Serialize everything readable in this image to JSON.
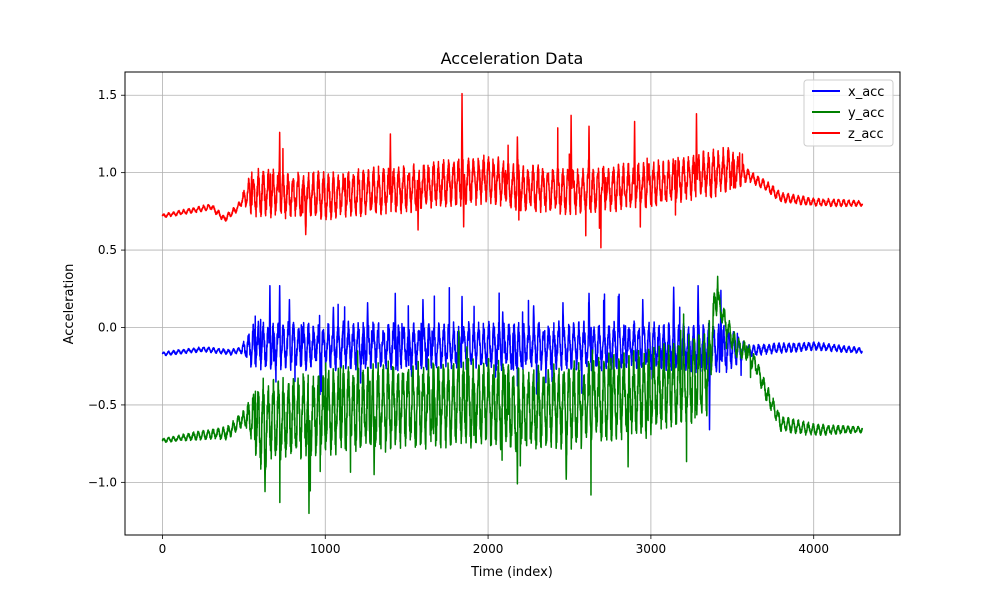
{
  "chart_data": {
    "type": "line",
    "title": "Acceleration Data",
    "xlabel": "Time (index)",
    "ylabel": "Acceleration",
    "xlim": [
      -230,
      4530
    ],
    "ylim": [
      -1.34,
      1.65
    ],
    "xticks": [
      0,
      1000,
      2000,
      3000,
      4000
    ],
    "yticks": [
      -1.0,
      -0.5,
      0.0,
      0.5,
      1.0,
      1.5
    ],
    "xtick_labels": [
      "0",
      "1000",
      "2000",
      "3000",
      "4000"
    ],
    "ytick_labels": [
      "−1.0",
      "−0.5",
      "0.0",
      "0.5",
      "1.0",
      "1.5"
    ],
    "grid": true,
    "legend_position": "upper right",
    "n_points": 4300,
    "series": [
      {
        "name": "x_acc",
        "color": "#0000ff",
        "baseline": [
          [
            0,
            -0.17
          ],
          [
            250,
            -0.14
          ],
          [
            420,
            -0.16
          ],
          [
            500,
            -0.14
          ],
          [
            580,
            -0.12
          ],
          [
            1000,
            -0.12
          ],
          [
            2000,
            -0.12
          ],
          [
            3000,
            -0.12
          ],
          [
            3500,
            -0.14
          ],
          [
            3600,
            -0.15
          ],
          [
            3700,
            -0.14
          ],
          [
            4000,
            -0.12
          ],
          [
            4300,
            -0.15
          ]
        ],
        "oscillation": [
          [
            0,
            0.01
          ],
          [
            480,
            0.015
          ],
          [
            560,
            0.12
          ],
          [
            3480,
            0.12
          ],
          [
            3600,
            0.03
          ],
          [
            4300,
            0.015
          ]
        ],
        "spikes": [
          [
            660,
            0.27
          ],
          [
            720,
            0.27
          ],
          [
            780,
            0.18
          ],
          [
            1050,
            0.13
          ],
          [
            1260,
            0.16
          ],
          [
            1430,
            0.22
          ],
          [
            1600,
            0.18
          ],
          [
            1840,
            0.2
          ],
          [
            2090,
            0.1
          ],
          [
            2280,
            0.14
          ],
          [
            2460,
            0.16
          ],
          [
            2620,
            0.22
          ],
          [
            2800,
            0.2
          ],
          [
            2950,
            0.18
          ],
          [
            3140,
            0.26
          ],
          [
            3290,
            0.27
          ],
          [
            3360,
            -0.66
          ],
          [
            3430,
            0.24
          ]
        ]
      },
      {
        "name": "y_acc",
        "color": "#008000",
        "baseline": [
          [
            0,
            -0.73
          ],
          [
            200,
            -0.7
          ],
          [
            400,
            -0.68
          ],
          [
            500,
            -0.58
          ],
          [
            560,
            -0.6
          ],
          [
            600,
            -0.62
          ],
          [
            1000,
            -0.55
          ],
          [
            1500,
            -0.5
          ],
          [
            2000,
            -0.48
          ],
          [
            2200,
            -0.55
          ],
          [
            2500,
            -0.5
          ],
          [
            3000,
            -0.42
          ],
          [
            3350,
            -0.3
          ],
          [
            3400,
            0.2
          ],
          [
            3450,
            0.05
          ],
          [
            3520,
            -0.12
          ],
          [
            3600,
            -0.17
          ],
          [
            3650,
            -0.25
          ],
          [
            3700,
            -0.4
          ],
          [
            3800,
            -0.62
          ],
          [
            4000,
            -0.66
          ],
          [
            4300,
            -0.66
          ]
        ],
        "oscillation": [
          [
            0,
            0.01
          ],
          [
            500,
            0.04
          ],
          [
            600,
            0.22
          ],
          [
            3350,
            0.22
          ],
          [
            3420,
            0.06
          ],
          [
            4300,
            0.015
          ]
        ],
        "spikes": [
          [
            630,
            -1.06
          ],
          [
            900,
            -1.2
          ],
          [
            1300,
            -0.95
          ],
          [
            1820,
            -0.02
          ],
          [
            2180,
            -1.01
          ],
          [
            2480,
            -0.98
          ],
          [
            2860,
            -0.9
          ],
          [
            3410,
            0.33
          ]
        ]
      },
      {
        "name": "z_acc",
        "color": "#ff0000",
        "baseline": [
          [
            0,
            0.72
          ],
          [
            200,
            0.76
          ],
          [
            300,
            0.78
          ],
          [
            380,
            0.7
          ],
          [
            450,
            0.76
          ],
          [
            520,
            0.86
          ],
          [
            600,
            0.87
          ],
          [
            1000,
            0.85
          ],
          [
            1500,
            0.9
          ],
          [
            2000,
            0.96
          ],
          [
            2200,
            0.9
          ],
          [
            2600,
            0.88
          ],
          [
            3000,
            0.92
          ],
          [
            3300,
            0.98
          ],
          [
            3500,
            1.02
          ],
          [
            3600,
            0.98
          ],
          [
            3700,
            0.92
          ],
          [
            3800,
            0.84
          ],
          [
            4000,
            0.81
          ],
          [
            4300,
            0.8
          ]
        ],
        "oscillation": [
          [
            0,
            0.01
          ],
          [
            480,
            0.02
          ],
          [
            560,
            0.12
          ],
          [
            3480,
            0.12
          ],
          [
            3600,
            0.03
          ],
          [
            4300,
            0.015
          ]
        ],
        "spikes": [
          [
            720,
            1.26
          ],
          [
            880,
            0.6
          ],
          [
            1400,
            1.25
          ],
          [
            1570,
            0.63
          ],
          [
            1840,
            1.51
          ],
          [
            1850,
            0.65
          ],
          [
            2180,
            1.23
          ],
          [
            2510,
            1.37
          ],
          [
            2620,
            1.3
          ],
          [
            2900,
            1.33
          ],
          [
            3280,
            1.38
          ]
        ]
      }
    ]
  }
}
